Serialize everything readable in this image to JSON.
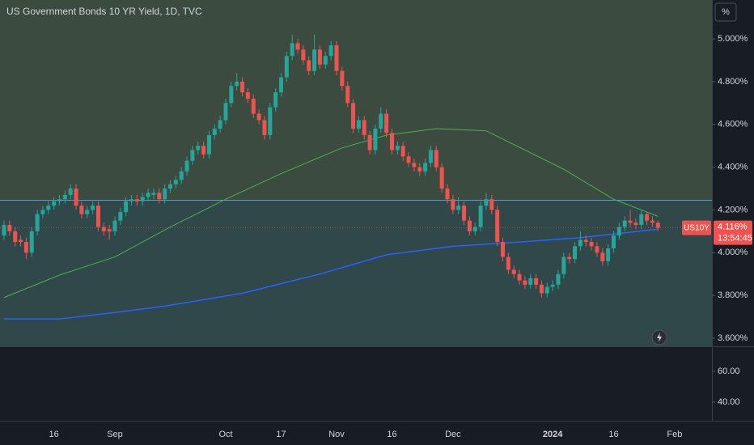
{
  "chart_data": {
    "type": "candlestick",
    "title": "US Government Bonds 10 YR Yield, 1D, TVC",
    "unit_button": "%",
    "symbol": "US10Y",
    "last_price": {
      "value": 4.116,
      "label": "4.116%"
    },
    "countdown": "13:54:45",
    "up_color": "#26a69a",
    "down_color": "#ef5350",
    "ylim": [
      3.562,
      5.182
    ],
    "yticks": [
      {
        "value": 5.0,
        "label": "5.000%"
      },
      {
        "value": 4.8,
        "label": "4.800%"
      },
      {
        "value": 4.6,
        "label": "4.600%"
      },
      {
        "value": 4.4,
        "label": "4.400%"
      },
      {
        "value": 4.2,
        "label": "4.200%"
      },
      {
        "value": 4.0,
        "label": "4.000%"
      },
      {
        "value": 3.8,
        "label": "3.800%"
      },
      {
        "value": 3.6,
        "label": "3.600%"
      }
    ],
    "level_line": {
      "value": 4.245,
      "color": "#5b9bd5"
    },
    "candles": [
      [
        4.08,
        4.15,
        4.06,
        4.13
      ],
      [
        4.13,
        4.15,
        4.08,
        4.1
      ],
      [
        4.1,
        4.12,
        4.03,
        4.05
      ],
      [
        4.06,
        4.08,
        4.03,
        4.05
      ],
      [
        4.05,
        4.07,
        3.97,
        4.0
      ],
      [
        4.0,
        4.12,
        3.98,
        4.1
      ],
      [
        4.1,
        4.2,
        4.08,
        4.18
      ],
      [
        4.18,
        4.22,
        4.16,
        4.2
      ],
      [
        4.2,
        4.24,
        4.18,
        4.22
      ],
      [
        4.22,
        4.26,
        4.2,
        4.24
      ],
      [
        4.24,
        4.27,
        4.22,
        4.25
      ],
      [
        4.25,
        4.29,
        4.23,
        4.27
      ],
      [
        4.27,
        4.32,
        4.25,
        4.3
      ],
      [
        4.3,
        4.32,
        4.2,
        4.22
      ],
      [
        4.22,
        4.24,
        4.16,
        4.18
      ],
      [
        4.18,
        4.22,
        4.16,
        4.2
      ],
      [
        4.2,
        4.24,
        4.18,
        4.22
      ],
      [
        4.22,
        4.24,
        4.1,
        4.12
      ],
      [
        4.12,
        4.14,
        4.08,
        4.1
      ],
      [
        4.11,
        4.13,
        4.06,
        4.1
      ],
      [
        4.1,
        4.17,
        4.08,
        4.15
      ],
      [
        4.15,
        4.21,
        4.13,
        4.19
      ],
      [
        4.19,
        4.26,
        4.17,
        4.24
      ],
      [
        4.24,
        4.27,
        4.22,
        4.25
      ],
      [
        4.25,
        4.27,
        4.22,
        4.24
      ],
      [
        4.24,
        4.28,
        4.22,
        4.26
      ],
      [
        4.26,
        4.3,
        4.24,
        4.28
      ],
      [
        4.27,
        4.3,
        4.25,
        4.28
      ],
      [
        4.28,
        4.3,
        4.23,
        4.25
      ],
      [
        4.25,
        4.32,
        4.23,
        4.3
      ],
      [
        4.3,
        4.34,
        4.28,
        4.32
      ],
      [
        4.32,
        4.36,
        4.3,
        4.34
      ],
      [
        4.34,
        4.4,
        4.32,
        4.38
      ],
      [
        4.38,
        4.45,
        4.36,
        4.43
      ],
      [
        4.43,
        4.5,
        4.41,
        4.48
      ],
      [
        4.48,
        4.52,
        4.46,
        4.5
      ],
      [
        4.5,
        4.52,
        4.44,
        4.46
      ],
      [
        4.46,
        4.57,
        4.44,
        4.55
      ],
      [
        4.55,
        4.6,
        4.53,
        4.58
      ],
      [
        4.58,
        4.64,
        4.56,
        4.62
      ],
      [
        4.62,
        4.72,
        4.6,
        4.7
      ],
      [
        4.7,
        4.8,
        4.68,
        4.78
      ],
      [
        4.78,
        4.84,
        4.76,
        4.8
      ],
      [
        4.8,
        4.82,
        4.73,
        4.75
      ],
      [
        4.75,
        4.77,
        4.7,
        4.72
      ],
      [
        4.72,
        4.74,
        4.63,
        4.65
      ],
      [
        4.65,
        4.67,
        4.6,
        4.62
      ],
      [
        4.62,
        4.64,
        4.53,
        4.55
      ],
      [
        4.55,
        4.7,
        4.53,
        4.68
      ],
      [
        4.68,
        4.77,
        4.66,
        4.75
      ],
      [
        4.75,
        4.84,
        4.73,
        4.82
      ],
      [
        4.82,
        4.94,
        4.8,
        4.92
      ],
      [
        4.92,
        5.02,
        4.9,
        4.98
      ],
      [
        4.98,
        5.0,
        4.93,
        4.95
      ],
      [
        4.95,
        4.97,
        4.88,
        4.9
      ],
      [
        4.9,
        4.92,
        4.83,
        4.85
      ],
      [
        4.85,
        5.02,
        4.83,
        4.95
      ],
      [
        4.95,
        4.97,
        4.86,
        4.88
      ],
      [
        4.88,
        4.94,
        4.86,
        4.92
      ],
      [
        4.92,
        4.99,
        4.9,
        4.97
      ],
      [
        4.97,
        4.99,
        4.83,
        4.85
      ],
      [
        4.85,
        4.87,
        4.76,
        4.78
      ],
      [
        4.78,
        4.8,
        4.68,
        4.7
      ],
      [
        4.7,
        4.72,
        4.56,
        4.58
      ],
      [
        4.58,
        4.64,
        4.56,
        4.62
      ],
      [
        4.62,
        4.64,
        4.53,
        4.55
      ],
      [
        4.55,
        4.57,
        4.46,
        4.48
      ],
      [
        4.48,
        4.6,
        4.46,
        4.58
      ],
      [
        4.58,
        4.68,
        4.56,
        4.65
      ],
      [
        4.65,
        4.67,
        4.54,
        4.56
      ],
      [
        4.56,
        4.58,
        4.46,
        4.48
      ],
      [
        4.48,
        4.52,
        4.46,
        4.5
      ],
      [
        4.5,
        4.52,
        4.43,
        4.45
      ],
      [
        4.45,
        4.47,
        4.4,
        4.42
      ],
      [
        4.42,
        4.44,
        4.38,
        4.4
      ],
      [
        4.4,
        4.42,
        4.36,
        4.38
      ],
      [
        4.38,
        4.44,
        4.36,
        4.42
      ],
      [
        4.42,
        4.5,
        4.4,
        4.48
      ],
      [
        4.48,
        4.5,
        4.38,
        4.4
      ],
      [
        4.4,
        4.42,
        4.28,
        4.3
      ],
      [
        4.3,
        4.32,
        4.23,
        4.25
      ],
      [
        4.25,
        4.27,
        4.18,
        4.2
      ],
      [
        4.2,
        4.26,
        4.18,
        4.22
      ],
      [
        4.22,
        4.24,
        4.13,
        4.15
      ],
      [
        4.15,
        4.17,
        4.08,
        4.1
      ],
      [
        4.1,
        4.14,
        4.08,
        4.12
      ],
      [
        4.12,
        4.24,
        4.1,
        4.22
      ],
      [
        4.22,
        4.28,
        4.2,
        4.25
      ],
      [
        4.25,
        4.27,
        4.18,
        4.2
      ],
      [
        4.2,
        4.22,
        4.03,
        4.05
      ],
      [
        4.05,
        4.07,
        3.96,
        3.98
      ],
      [
        3.98,
        4.0,
        3.9,
        3.92
      ],
      [
        3.92,
        3.94,
        3.88,
        3.9
      ],
      [
        3.9,
        3.92,
        3.85,
        3.87
      ],
      [
        3.87,
        3.89,
        3.83,
        3.85
      ],
      [
        3.85,
        3.9,
        3.83,
        3.88
      ],
      [
        3.88,
        3.9,
        3.83,
        3.85
      ],
      [
        3.85,
        3.87,
        3.79,
        3.81
      ],
      [
        3.81,
        3.86,
        3.79,
        3.84
      ],
      [
        3.84,
        3.87,
        3.82,
        3.85
      ],
      [
        3.85,
        3.92,
        3.83,
        3.9
      ],
      [
        3.9,
        4.0,
        3.88,
        3.98
      ],
      [
        3.98,
        4.0,
        3.95,
        3.97
      ],
      [
        3.97,
        4.05,
        3.95,
        4.03
      ],
      [
        4.03,
        4.1,
        4.01,
        4.06
      ],
      [
        4.06,
        4.08,
        4.03,
        4.05
      ],
      [
        4.05,
        4.07,
        4.01,
        4.03
      ],
      [
        4.03,
        4.05,
        3.98,
        4.0
      ],
      [
        4.0,
        4.02,
        3.94,
        3.96
      ],
      [
        3.96,
        4.04,
        3.94,
        4.02
      ],
      [
        4.02,
        4.1,
        4.0,
        4.08
      ],
      [
        4.08,
        4.14,
        4.06,
        4.12
      ],
      [
        4.12,
        4.17,
        4.1,
        4.15
      ],
      [
        4.15,
        4.2,
        4.12,
        4.14
      ],
      [
        4.14,
        4.16,
        4.11,
        4.13
      ],
      [
        4.13,
        4.2,
        4.11,
        4.18
      ],
      [
        4.18,
        4.19,
        4.13,
        4.15
      ],
      [
        4.15,
        4.17,
        4.12,
        4.14
      ],
      [
        4.14,
        4.15,
        4.1,
        4.116
      ]
    ],
    "moving_averages": [
      {
        "color": "#4caf50",
        "points": [
          [
            0,
            3.79
          ],
          [
            10,
            3.895
          ],
          [
            20,
            3.98
          ],
          [
            30,
            4.12
          ],
          [
            40,
            4.25
          ],
          [
            50,
            4.37
          ],
          [
            61,
            4.49
          ],
          [
            69,
            4.55
          ],
          [
            78,
            4.58
          ],
          [
            87,
            4.57
          ],
          [
            94,
            4.48
          ],
          [
            101,
            4.39
          ],
          [
            110,
            4.25
          ],
          [
            118,
            4.17
          ]
        ]
      },
      {
        "color": "#2962ff",
        "points": [
          [
            0,
            3.69
          ],
          [
            10,
            3.69
          ],
          [
            20,
            3.72
          ],
          [
            29,
            3.75
          ],
          [
            43,
            3.81
          ],
          [
            57,
            3.9
          ],
          [
            69,
            3.99
          ],
          [
            81,
            4.03
          ],
          [
            93,
            4.05
          ],
          [
            104,
            4.07
          ],
          [
            118,
            4.11
          ]
        ]
      }
    ],
    "x_axis_labels": [
      {
        "candle": 9,
        "label": "16"
      },
      {
        "candle": 20,
        "label": "Sep"
      },
      {
        "candle": 40,
        "label": "Oct"
      },
      {
        "candle": 50,
        "label": "17"
      },
      {
        "candle": 60,
        "label": "Nov"
      },
      {
        "candle": 70,
        "label": "16"
      },
      {
        "candle": 81,
        "label": "Dec"
      },
      {
        "candle": 99,
        "label": "2024",
        "bold": true
      },
      {
        "candle": 110,
        "label": "16"
      },
      {
        "candle": 121,
        "label": "Feb"
      }
    ],
    "pane2_lim": [
      27.9,
      76.3
    ],
    "pane2_ticks": [
      {
        "value": 60,
        "label": "60.00"
      },
      {
        "value": 40,
        "label": "40.00"
      }
    ]
  }
}
